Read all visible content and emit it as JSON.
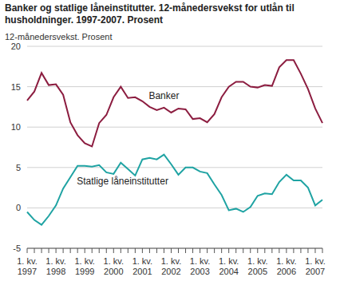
{
  "chart_data": {
    "type": "line",
    "title": "Banker og statlige låneinstitutter. 12-månedersvekst for utlån til husholdninger. 1997-2007. Prosent",
    "y_label": "12-månedersvekst. Prosent",
    "categories": [
      "1. kv. 1997",
      null,
      null,
      null,
      "1. kv. 1998",
      null,
      null,
      null,
      "1. kv. 1999",
      null,
      null,
      null,
      "1. kv. 2000",
      null,
      null,
      null,
      "1. kv. 2001",
      null,
      null,
      null,
      "1. kv. 2002",
      null,
      null,
      null,
      "1. kv. 2003",
      null,
      null,
      null,
      "1. kv. 2004",
      null,
      null,
      null,
      "1. kv. 2005",
      null,
      null,
      null,
      "1. kv. 2006",
      null,
      null,
      null,
      "1. kv. 2007",
      null
    ],
    "series": [
      {
        "name": "Banker",
        "color": "#8c1d40",
        "values": [
          13.3,
          14.4,
          16.7,
          15.2,
          15.3,
          14.0,
          10.6,
          9.0,
          8.0,
          7.6,
          10.5,
          11.5,
          13.7,
          15.0,
          13.6,
          13.7,
          13.2,
          12.5,
          12.1,
          12.4,
          11.8,
          12.3,
          12.2,
          11.0,
          11.1,
          10.6,
          11.6,
          13.7,
          15.0,
          15.6,
          15.6,
          15.0,
          14.9,
          15.2,
          15.1,
          17.4,
          18.3,
          18.3,
          16.6,
          14.7,
          12.3,
          10.5
        ]
      },
      {
        "name": "Statlige låneinstitutter",
        "color": "#1fa3a3",
        "values": [
          -0.5,
          -1.5,
          -2.1,
          -1.0,
          0.3,
          2.4,
          3.8,
          5.2,
          5.2,
          5.1,
          5.3,
          4.4,
          4.2,
          5.6,
          4.8,
          4.0,
          6.0,
          6.2,
          6.0,
          6.6,
          5.4,
          4.1,
          5.0,
          5.0,
          4.5,
          4.3,
          2.9,
          1.6,
          -0.3,
          -0.1,
          -0.5,
          0.1,
          1.5,
          1.8,
          1.7,
          3.2,
          4.1,
          3.4,
          3.4,
          2.5,
          0.3,
          1.0
        ]
      }
    ],
    "ylim": [
      -5,
      20
    ],
    "yticks": [
      -5,
      0,
      5,
      10,
      15,
      20
    ],
    "grid": true
  }
}
